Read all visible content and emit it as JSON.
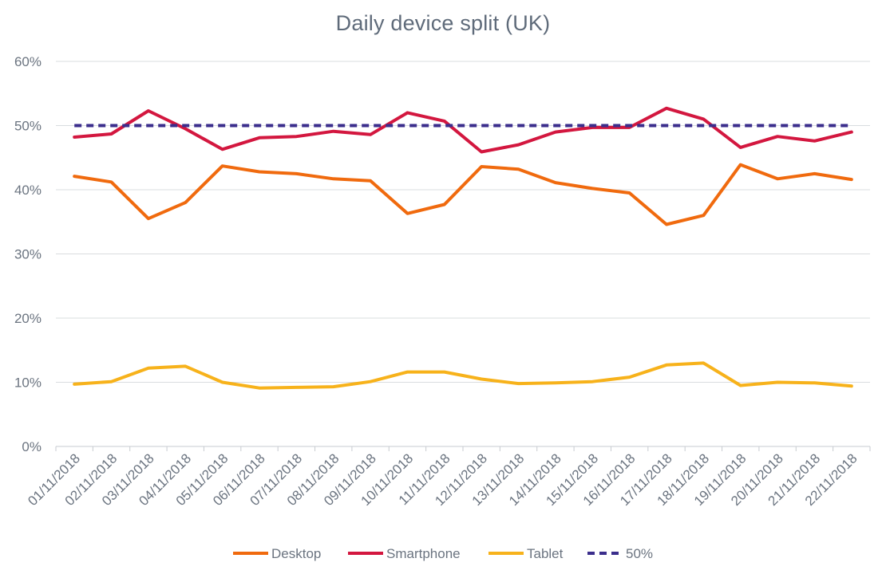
{
  "chart_data": {
    "type": "line",
    "title": "Daily device split (UK)",
    "xlabel": "",
    "ylabel": "",
    "ylim": [
      0,
      60
    ],
    "yticks": [
      0,
      10,
      20,
      30,
      40,
      50,
      60
    ],
    "ytick_labels": [
      "0%",
      "10%",
      "20%",
      "30%",
      "40%",
      "50%",
      "60%"
    ],
    "grid": true,
    "legend": "bottom",
    "categories": [
      "01/11/2018",
      "02/11/2018",
      "03/11/2018",
      "04/11/2018",
      "05/11/2018",
      "06/11/2018",
      "07/11/2018",
      "08/11/2018",
      "09/11/2018",
      "10/11/2018",
      "11/11/2018",
      "12/11/2018",
      "13/11/2018",
      "14/11/2018",
      "15/11/2018",
      "16/11/2018",
      "17/11/2018",
      "18/11/2018",
      "19/11/2018",
      "20/11/2018",
      "21/11/2018",
      "22/11/2018"
    ],
    "series": [
      {
        "name": "Desktop",
        "color": "#f06a0e",
        "dashed": false,
        "values": [
          42.1,
          41.2,
          35.5,
          38.0,
          43.7,
          42.8,
          42.5,
          41.7,
          41.4,
          36.3,
          37.7,
          43.6,
          43.2,
          41.1,
          40.2,
          39.5,
          34.6,
          36.0,
          43.9,
          41.7,
          42.5,
          41.6
        ]
      },
      {
        "name": "Smartphone",
        "color": "#d3173f",
        "dashed": false,
        "values": [
          48.2,
          48.7,
          52.3,
          49.5,
          46.3,
          48.1,
          48.3,
          49.1,
          48.6,
          52.0,
          50.7,
          45.9,
          47.0,
          49.0,
          49.7,
          49.7,
          52.7,
          51.0,
          46.6,
          48.3,
          47.6,
          49.0
        ]
      },
      {
        "name": "Tablet",
        "color": "#f7b21b",
        "dashed": false,
        "values": [
          9.7,
          10.1,
          12.2,
          12.5,
          10.0,
          9.1,
          9.2,
          9.3,
          10.1,
          11.6,
          11.6,
          10.5,
          9.8,
          9.9,
          10.1,
          10.8,
          12.7,
          13.0,
          9.5,
          10.0,
          9.9,
          9.4
        ]
      },
      {
        "name": "50%",
        "color": "#3b2e8c",
        "dashed": true,
        "values": [
          50,
          50,
          50,
          50,
          50,
          50,
          50,
          50,
          50,
          50,
          50,
          50,
          50,
          50,
          50,
          50,
          50,
          50,
          50,
          50,
          50,
          50
        ]
      }
    ]
  }
}
